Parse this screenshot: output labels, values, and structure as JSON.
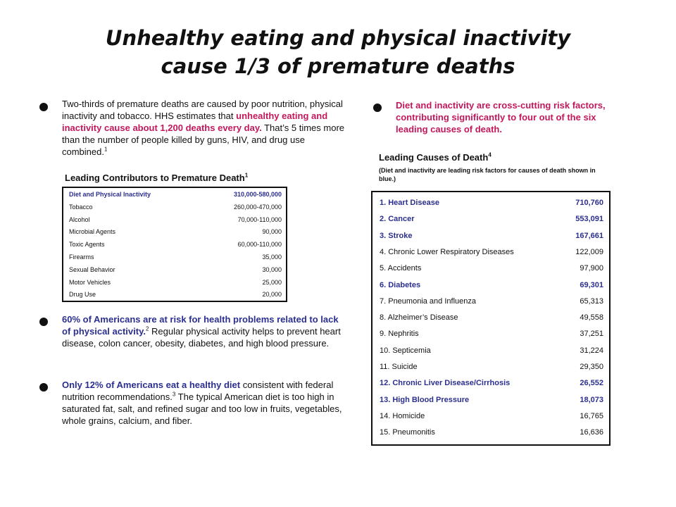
{
  "title": {
    "line1": "Unhealthy eating and physical inactivity",
    "line2": "cause 1/3 of premature deaths"
  },
  "left": {
    "p1": {
      "a": "Two-thirds of premature deaths are caused by poor nutrition, physical inactivity and tobacco.  HHS estimates that ",
      "b": "unhealthy eating and inactivity cause about 1,200 deaths every day.",
      "c": "  That’s 5 times more than the number of people killed by guns, HIV, and drug use combined.",
      "sup": "1"
    },
    "table_title": "Leading Contributors to Premature Death",
    "table_title_sup": "1",
    "contributors": [
      {
        "label": "Diet and Physical Inactivity",
        "value": "310,000-580,000"
      },
      {
        "label": "Tobacco",
        "value": "260,000-470,000"
      },
      {
        "label": "Alcohol",
        "value": "70,000-110,000"
      },
      {
        "label": "Microbial Agents",
        "value": "90,000"
      },
      {
        "label": "Toxic Agents",
        "value": "60,000-110,000"
      },
      {
        "label": "Firearms",
        "value": "35,000"
      },
      {
        "label": "Sexual Behavior",
        "value": "30,000"
      },
      {
        "label": "Motor Vehicles",
        "value": "25,000"
      },
      {
        "label": "Drug Use",
        "value": "20,000"
      }
    ],
    "p2": {
      "a": "60% of Americans are at risk for health problems related to lack of physical activity.",
      "sup": "2",
      "b": "  Regular physical activity helps to prevent heart disease, colon cancer, obesity, diabetes, and high blood pressure."
    },
    "p3": {
      "a": "Only 12% of Americans eat a healthy diet",
      "b": " consistent with federal nutrition recommendations.",
      "sup": "3",
      "c": " The typical American diet is too high in saturated fat, salt, and refined sugar and too low in fruits, vegetables, whole grains, calcium, and fiber."
    }
  },
  "right": {
    "p1": "Diet and inactivity are cross-cutting risk factors, contributing significantly to four out of the six leading causes of death.",
    "table_title": "Leading Causes of Death",
    "table_title_sup": "4",
    "table_sub": "(Diet and inactivity are leading risk factors for causes of death shown in blue.)",
    "causes": [
      {
        "label": "1.  Heart Disease",
        "value": "710,760"
      },
      {
        "label": "2.  Cancer",
        "value": "553,091"
      },
      {
        "label": "3.  Stroke",
        "value": "167,661"
      },
      {
        "label": "4.  Chronic Lower Respiratory Diseases",
        "value": "122,009"
      },
      {
        "label": "5.  Accidents",
        "value": "97,900"
      },
      {
        "label": "6.  Diabetes",
        "value": "69,301"
      },
      {
        "label": "7.  Pneumonia and Influenza",
        "value": "65,313"
      },
      {
        "label": "8.  Alzheimer’s Disease",
        "value": "49,558"
      },
      {
        "label": "9.  Nephritis",
        "value": "37,251"
      },
      {
        "label": "10.  Septicemia",
        "value": "31,224"
      },
      {
        "label": "11.  Suicide",
        "value": "29,350"
      },
      {
        "label": "12.  Chronic Liver Disease/Cirrhosis",
        "value": "26,552"
      },
      {
        "label": "13.  High Blood Pressure",
        "value": "18,073"
      },
      {
        "label": "14.  Homicide",
        "value": "16,765"
      },
      {
        "label": "15.  Pneumonitis",
        "value": "16,636"
      }
    ]
  },
  "colors": {
    "highlight_blue": "#2b2f8f",
    "highlight_magenta": "#c2185b"
  }
}
